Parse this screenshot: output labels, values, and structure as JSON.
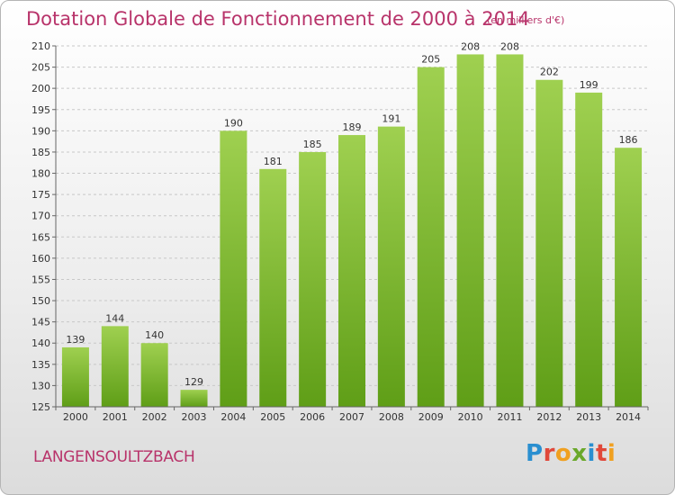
{
  "header": {
    "title": "Dotation Globale de Fonctionnement de 2000 à 2014",
    "unit": "(en milliers d'€)"
  },
  "footer": {
    "commune": "LANGENSOULTZBACH",
    "logo": "Proxiti"
  },
  "colors": {
    "title": "#b8336a",
    "bar_top": "#9fd050",
    "bar_bottom": "#5f9e17",
    "grid": "#c8c8c8"
  },
  "chart_data": {
    "type": "bar",
    "title": "Dotation Globale de Fonctionnement de 2000 à 2014",
    "subtitle": "(en milliers d'€)",
    "categories": [
      "2000",
      "2001",
      "2002",
      "2003",
      "2004",
      "2005",
      "2006",
      "2007",
      "2008",
      "2009",
      "2010",
      "2011",
      "2012",
      "2013",
      "2014"
    ],
    "values": [
      139,
      144,
      140,
      129,
      190,
      181,
      185,
      189,
      191,
      205,
      208,
      208,
      202,
      199,
      186
    ],
    "ylim": [
      125,
      210
    ],
    "yticks": [
      125,
      130,
      135,
      140,
      145,
      150,
      155,
      160,
      165,
      170,
      175,
      180,
      185,
      190,
      195,
      200,
      205,
      210
    ],
    "grid": true,
    "legend": "none"
  }
}
